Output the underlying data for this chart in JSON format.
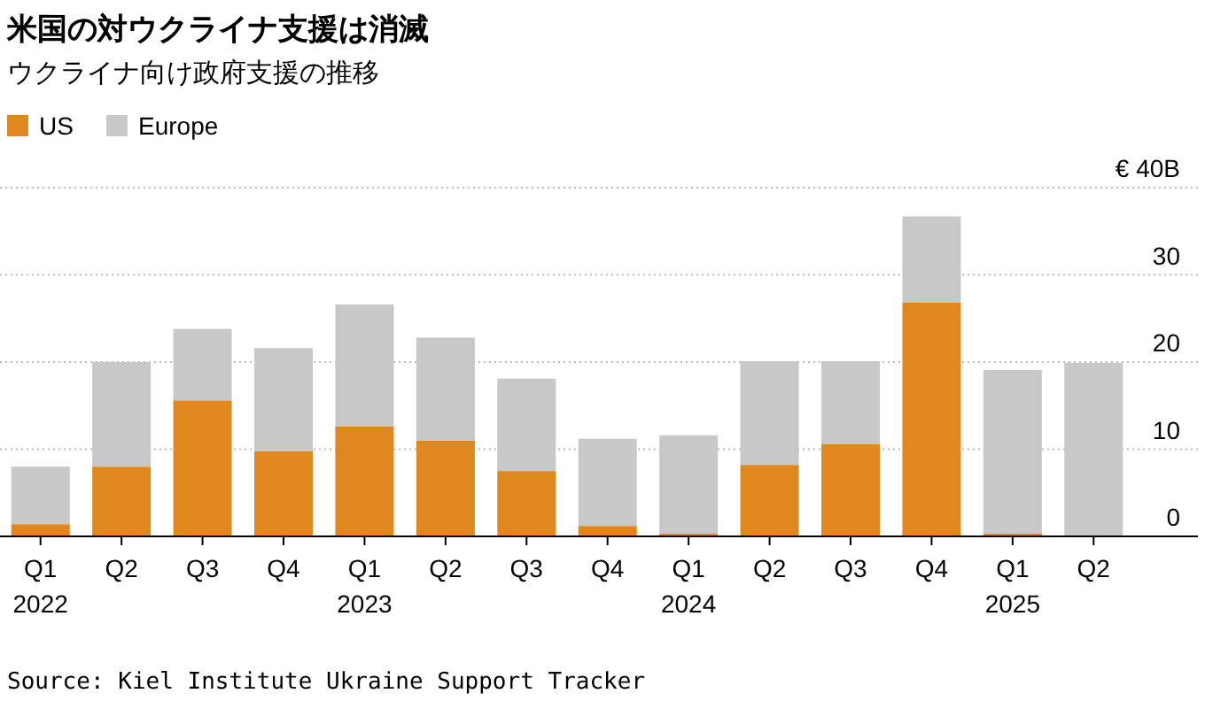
{
  "chart_data": {
    "type": "bar",
    "stacked": true,
    "title": "米国の対ウクライナ支援は消滅",
    "subtitle": "ウクライナ向け政府支援の推移",
    "categories": [
      "Q1 2022",
      "Q2",
      "Q3",
      "Q4",
      "Q1 2023",
      "Q2",
      "Q3",
      "Q4",
      "Q1 2024",
      "Q2",
      "Q3",
      "Q4",
      "Q1 2025",
      "Q2"
    ],
    "series": [
      {
        "name": "US",
        "color": "#e0881f",
        "values": [
          1.4,
          8.0,
          15.6,
          9.8,
          12.6,
          11.0,
          7.5,
          1.2,
          0.3,
          8.2,
          10.6,
          26.8,
          0.3,
          0
        ]
      },
      {
        "name": "Europe",
        "color": "#c8c8c8",
        "values": [
          6.6,
          12.0,
          8.2,
          11.8,
          14.0,
          11.8,
          10.6,
          10.0,
          11.3,
          11.9,
          9.5,
          9.9,
          18.8,
          19.9
        ]
      }
    ],
    "ylim": [
      0,
      40
    ],
    "yticks": [
      0,
      10,
      20,
      30,
      {
        "value": 40,
        "label": "€ 40B"
      }
    ],
    "grid": "y",
    "legend": "top left",
    "annotations": [
      "Source: Kiel Institute Ukraine Support Tracker"
    ]
  }
}
